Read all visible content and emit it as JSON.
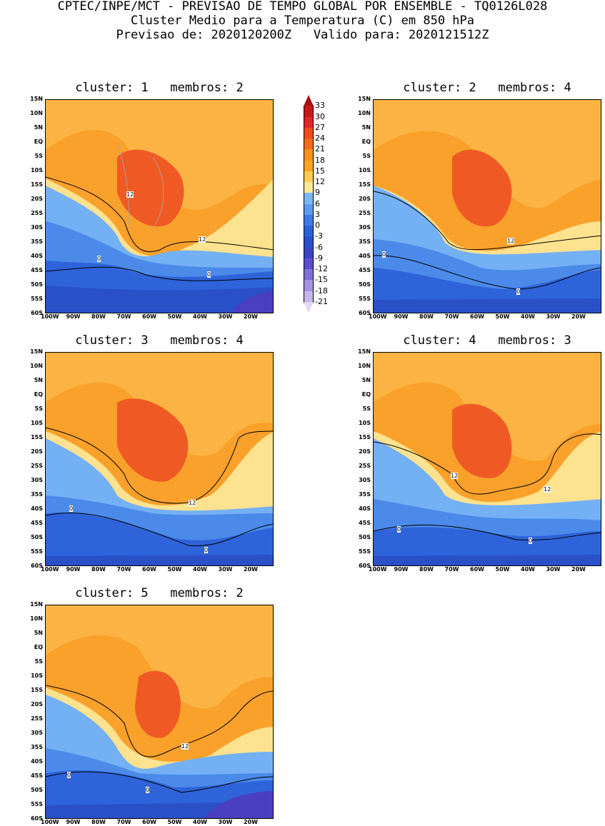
{
  "header": {
    "line1": "CPTEC/INPE/MCT - PREVISAO DE TEMPO GLOBAL POR ENSEMBLE - TQ0126L028",
    "line2": "Cluster Medio para a Temperatura (C) em 850 hPa",
    "line3": "Previsao de: 2020120200Z   Valido para: 2020121512Z"
  },
  "axes": {
    "lat_labels": [
      "15N",
      "10N",
      "5N",
      "EQ",
      "5S",
      "10S",
      "15S",
      "20S",
      "25S",
      "30S",
      "35S",
      "40S",
      "45S",
      "50S",
      "55S",
      "60S"
    ],
    "lon_labels": [
      "100W",
      "90W",
      "80W",
      "70W",
      "60W",
      "50W",
      "40W",
      "30W",
      "20W"
    ]
  },
  "panels": [
    {
      "title": "cluster: 1   membros: 2",
      "contour_labels": [
        "12",
        "12",
        "0",
        "0"
      ]
    },
    {
      "title": "cluster: 2   membros: 4",
      "contour_labels": [
        "12",
        "0",
        "0"
      ]
    },
    {
      "title": "cluster: 3   membros: 4",
      "contour_labels": [
        "12",
        "0",
        "0"
      ]
    },
    {
      "title": "cluster: 4   membros: 3",
      "contour_labels": [
        "12",
        "12",
        "0",
        "0"
      ]
    },
    {
      "title": "cluster: 5   membros: 2",
      "contour_labels": [
        "12",
        "0",
        "0"
      ]
    }
  ],
  "colorbar": {
    "labels": [
      "33",
      "30",
      "27",
      "24",
      "21",
      "18",
      "15",
      "12",
      "9",
      "6",
      "3",
      "0",
      "-3",
      "-6",
      "-9",
      "-12",
      "-15",
      "-18",
      "-21"
    ],
    "colors": [
      "#a50f15",
      "#c8171c",
      "#e0262a",
      "#ef4a22",
      "#f26b1f",
      "#f5911d",
      "#f9a527",
      "#fccc55",
      "#fde79a",
      "#7bb6f5",
      "#5d9bee",
      "#3d7ce4",
      "#2d62d7",
      "#2950c9",
      "#3a44c5",
      "#5a4ecd",
      "#8170d6",
      "#a692e0",
      "#c7b6ec",
      "#e3d9f5"
    ]
  },
  "colors": {
    "warm_deep": "#ef5a24",
    "warm": "#f9a12a",
    "warm_light": "#fcc255",
    "pale": "#fde28f",
    "cool_light": "#74b0f4",
    "cool": "#4b8ae9",
    "cold": "#2e63d9",
    "colder": "#2a50c8",
    "coldest": "#4a3fc0"
  }
}
